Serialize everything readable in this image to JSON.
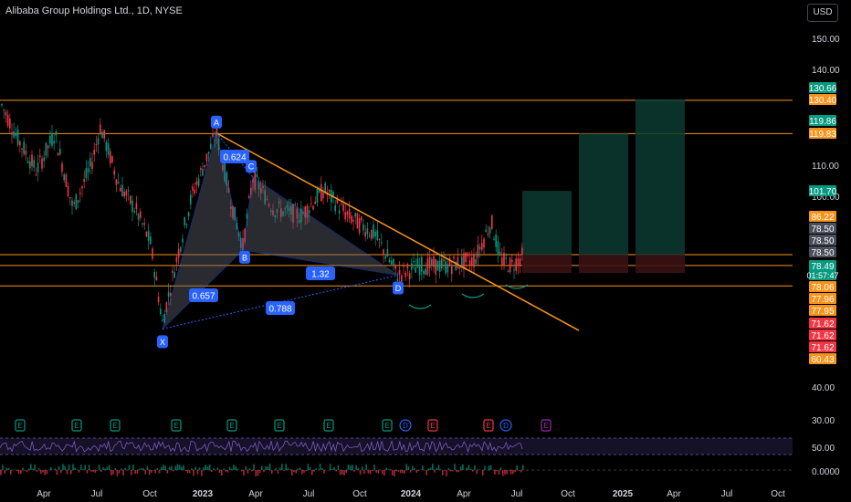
{
  "header": {
    "title": "Alibaba Group Holdings Ltd., 1D, NYSE",
    "currency": "USD"
  },
  "chart_data": {
    "type": "candlestick",
    "title": "Alibaba Group Holdings Ltd., 1D, NYSE",
    "price_axis": {
      "ticks": [
        150.0,
        140.0,
        110.0,
        100.0,
        40.0
      ]
    },
    "rsi_axis": {
      "ticks": [
        30.0,
        50.0,
        0.0
      ]
    },
    "time_axis": [
      "Apr",
      "Jul",
      "Oct",
      "2023",
      "Apr",
      "Jul",
      "Oct",
      "2024",
      "Apr",
      "Jul",
      "Oct",
      "2025",
      "Apr",
      "Jul",
      "Oct"
    ],
    "horizontal_levels": [
      130.4,
      119.83,
      81.5,
      78.06,
      71.62
    ],
    "price_labels": [
      {
        "text": "130.66",
        "color": "#089981"
      },
      {
        "text": "130.40",
        "color": "#f7931a"
      },
      {
        "text": "119.86",
        "color": "#089981"
      },
      {
        "text": "119.83",
        "color": "#f7931a"
      },
      {
        "text": "101.70",
        "color": "#089981"
      },
      {
        "text": "86.22",
        "color": "#f7931a"
      },
      {
        "text": "78.50",
        "color": "#4a4e5a"
      },
      {
        "text": "78.50",
        "color": "#4a4e5a"
      },
      {
        "text": "78.50",
        "color": "#4a4e5a"
      },
      {
        "text": "78.49",
        "sub": "01:57:47",
        "color": "#089981"
      },
      {
        "text": "78.06",
        "color": "#f7931a"
      },
      {
        "text": "77.96",
        "color": "#f7931a"
      },
      {
        "text": "77.95",
        "color": "#f7931a"
      },
      {
        "text": "71.62",
        "color": "#f23645"
      },
      {
        "text": "71.62",
        "color": "#f23645"
      },
      {
        "text": "71.62",
        "color": "#f23645"
      },
      {
        "text": "60.43",
        "color": "#f7931a"
      }
    ],
    "harmonic_pattern": {
      "points": [
        {
          "label": "X",
          "price": 58.0
        },
        {
          "label": "A",
          "price": 120.0
        },
        {
          "label": "B",
          "price": 83.0
        },
        {
          "label": "C",
          "price": 106.0
        },
        {
          "label": "D",
          "price": 75.0
        }
      ],
      "ratios": [
        "0.624",
        "0.657",
        "1.32",
        "0.788"
      ]
    },
    "targets": [
      {
        "price": 101.7
      },
      {
        "price": 119.86
      },
      {
        "price": 130.66
      }
    ],
    "event_markers": [
      "E",
      "E",
      "E",
      "E",
      "E",
      "E",
      "E",
      "E",
      "D",
      "E",
      "E",
      "D",
      "E"
    ],
    "colors": {
      "up": "#089981",
      "down": "#f23645",
      "level": "#f7931a",
      "pattern": "#2962ff"
    }
  }
}
